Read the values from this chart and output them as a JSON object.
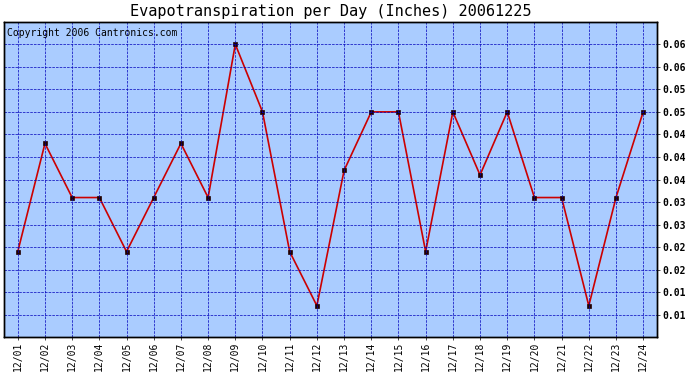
{
  "title": "Evapotranspiration per Day (Inches) 20061225",
  "copyright_text": "Copyright 2006 Cantronics.com",
  "x_labels": [
    "12/01",
    "12/02",
    "12/03",
    "12/04",
    "12/05",
    "12/06",
    "12/07",
    "12/08",
    "12/09",
    "12/10",
    "12/11",
    "12/12",
    "12/13",
    "12/14",
    "12/15",
    "12/16",
    "12/17",
    "12/18",
    "12/19",
    "12/20",
    "12/21",
    "12/22",
    "12/23",
    "12/24"
  ],
  "y_values": [
    0.019,
    0.043,
    0.031,
    0.031,
    0.019,
    0.031,
    0.043,
    0.031,
    0.065,
    0.05,
    0.019,
    0.007,
    0.037,
    0.05,
    0.05,
    0.019,
    0.05,
    0.036,
    0.05,
    0.031,
    0.031,
    0.007,
    0.031,
    0.05
  ],
  "line_color": "#cc0000",
  "marker_color": "#220000",
  "fig_bg_color": "#ffffff",
  "plot_bg_color": "#aaccff",
  "border_color": "#000000",
  "grid_color": "#0000bb",
  "ylim_min": 0.0,
  "ylim_max": 0.07,
  "title_fontsize": 11,
  "copyright_fontsize": 7,
  "tick_fontsize": 7
}
